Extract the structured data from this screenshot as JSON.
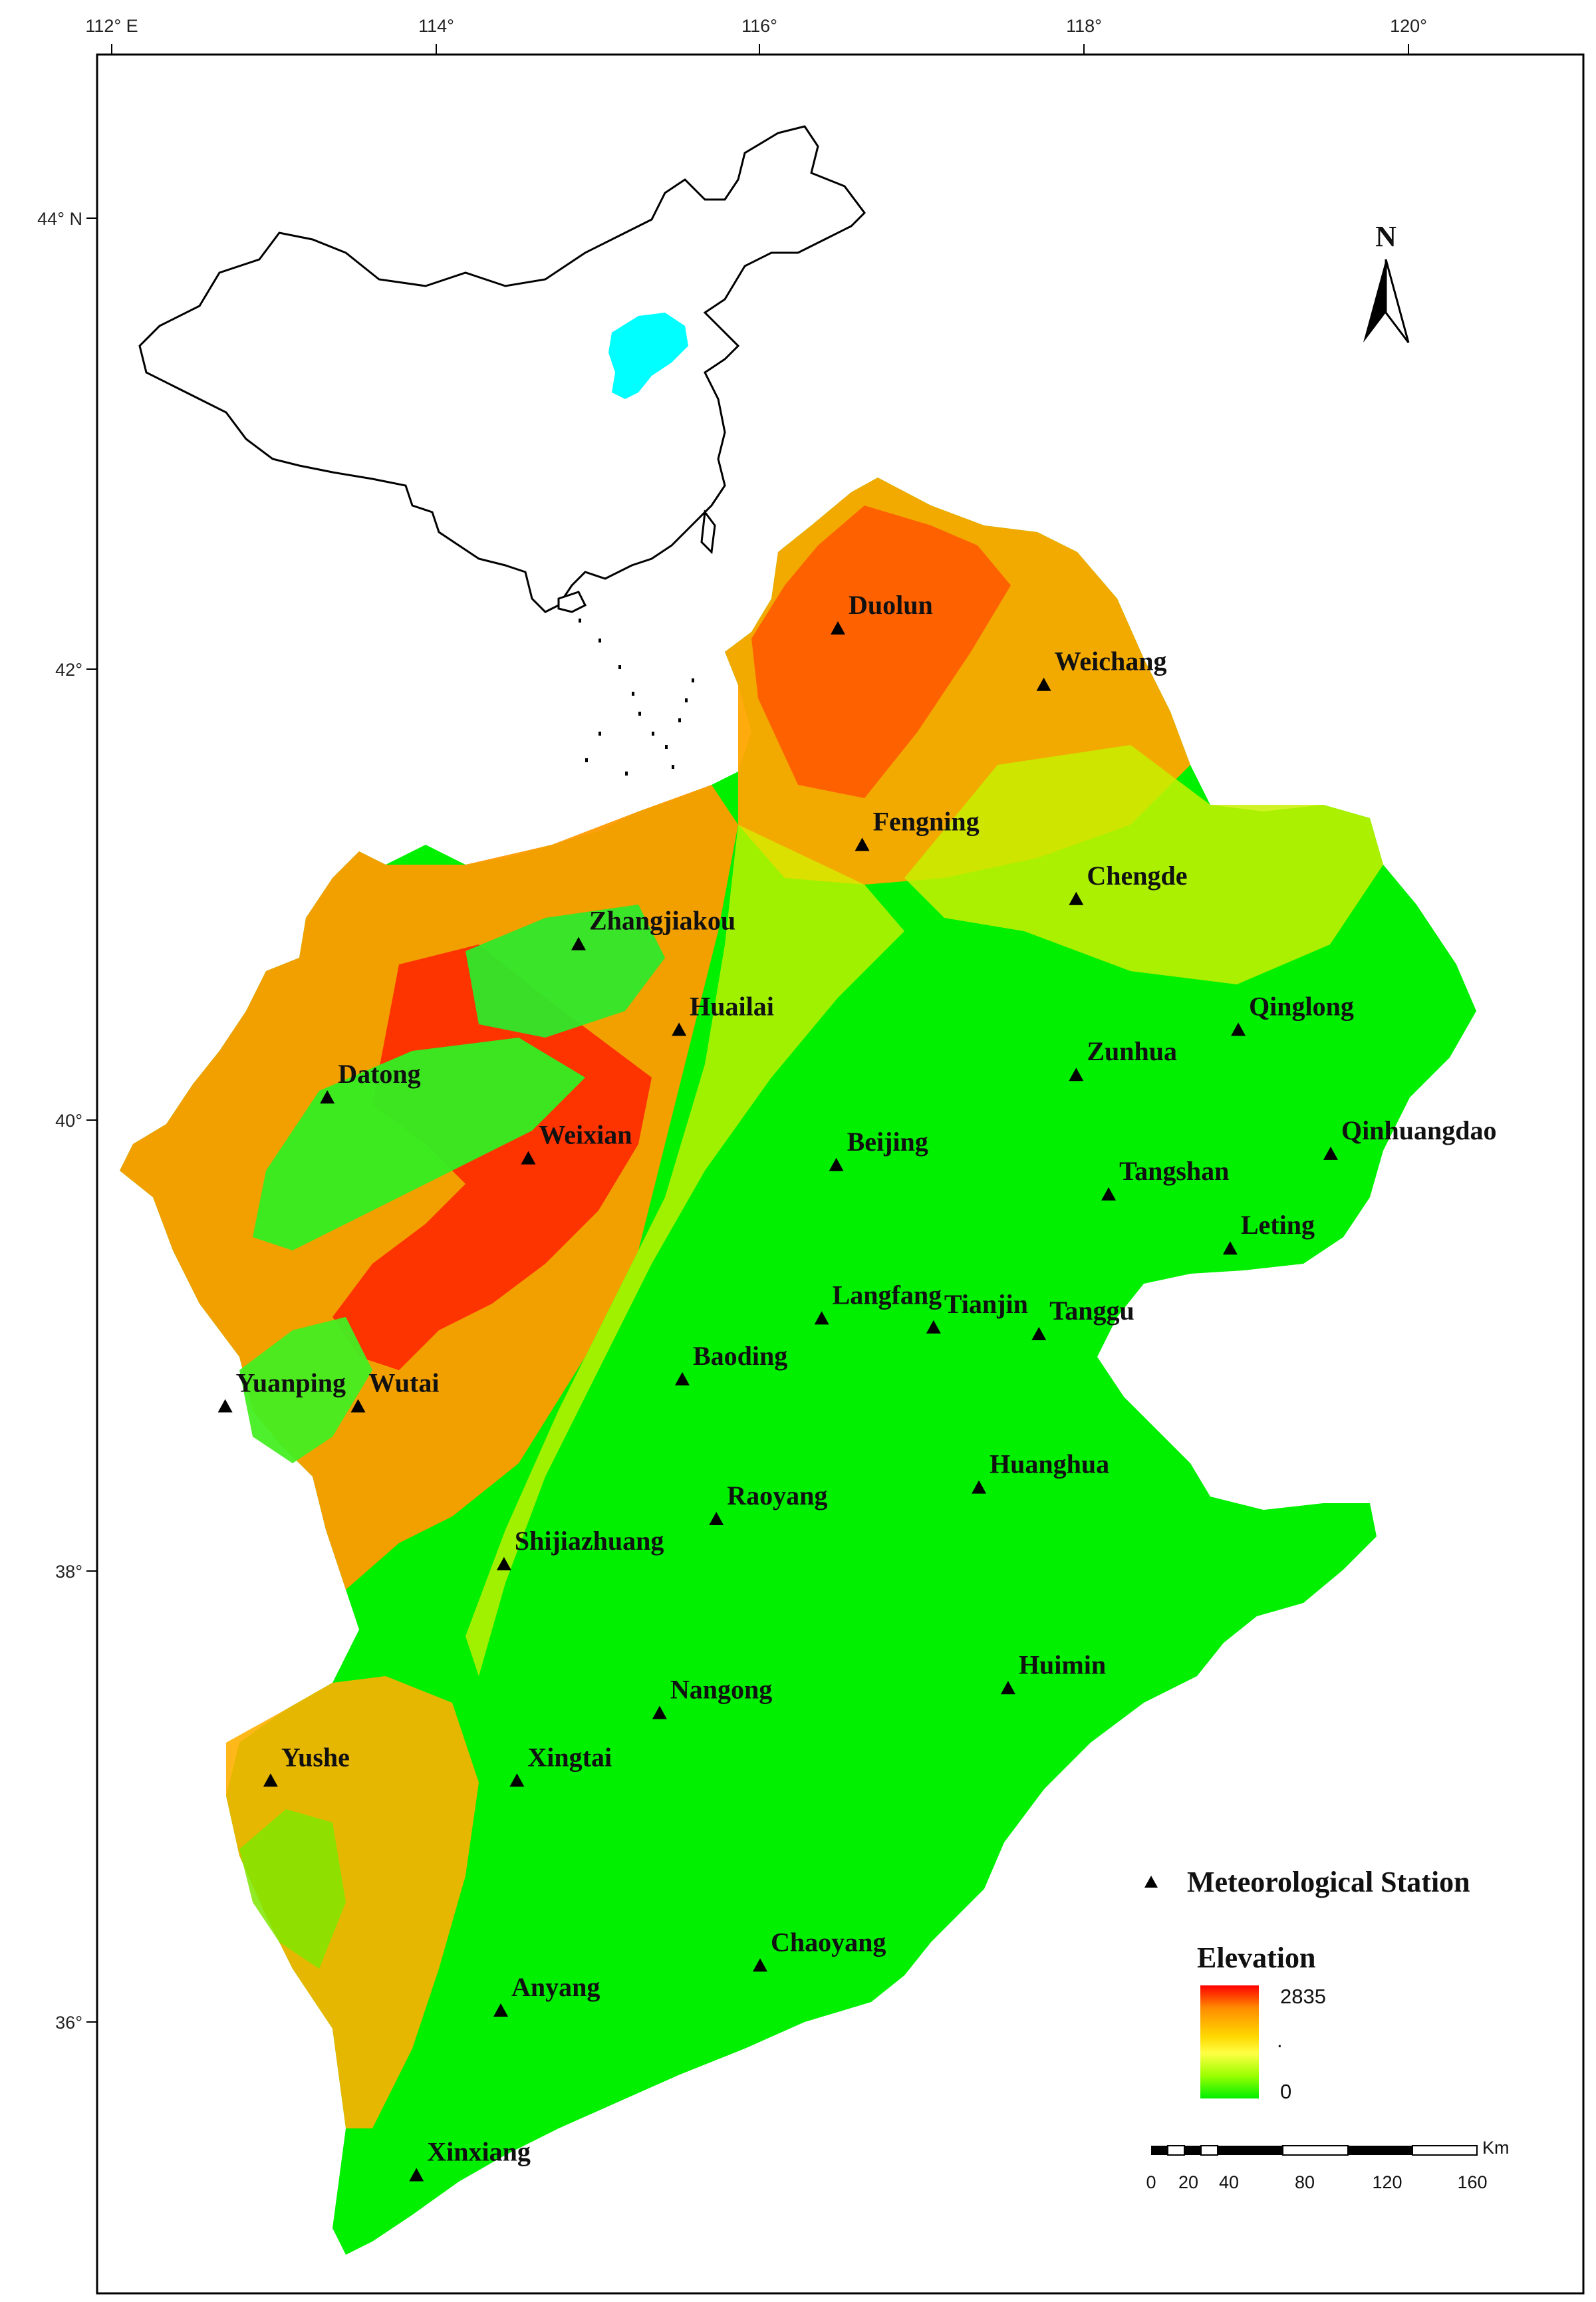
{
  "axes": {
    "longitude_labels": [
      "112° E",
      "114°",
      "116°",
      "118°",
      "120°"
    ],
    "latitude_labels": [
      "44° N",
      "42°",
      "40°",
      "38°",
      "36°"
    ]
  },
  "north_arrow": {
    "label": "N",
    "icon": "north-arrow-icon"
  },
  "inset": {
    "icon": "china-outline-icon",
    "highlight_color": "#00FFFF"
  },
  "stations": [
    {
      "name": "Duolun",
      "lon": 116.48,
      "lat": 42.18
    },
    {
      "name": "Weichang",
      "lon": 117.75,
      "lat": 41.93
    },
    {
      "name": "Fengning",
      "lon": 116.63,
      "lat": 41.22
    },
    {
      "name": "Chengde",
      "lon": 117.95,
      "lat": 40.98
    },
    {
      "name": "Zhangjiakou",
      "lon": 114.88,
      "lat": 40.78
    },
    {
      "name": "Qinglong",
      "lon": 118.95,
      "lat": 40.4
    },
    {
      "name": "Huailai",
      "lon": 115.5,
      "lat": 40.4
    },
    {
      "name": "Zunhua",
      "lon": 117.95,
      "lat": 40.2
    },
    {
      "name": "Qinhuangdao",
      "lon": 119.52,
      "lat": 39.85
    },
    {
      "name": "Datong",
      "lon": 113.33,
      "lat": 40.1
    },
    {
      "name": "Weixian",
      "lon": 114.57,
      "lat": 39.83
    },
    {
      "name": "Beijing",
      "lon": 116.47,
      "lat": 39.8
    },
    {
      "name": "Tangshan",
      "lon": 118.15,
      "lat": 39.67
    },
    {
      "name": "Leting",
      "lon": 118.9,
      "lat": 39.43
    },
    {
      "name": "Langfang",
      "lon": 116.38,
      "lat": 39.12
    },
    {
      "name": "Tianjin",
      "lon": 117.07,
      "lat": 39.08
    },
    {
      "name": "Tanggu",
      "lon": 117.72,
      "lat": 39.05
    },
    {
      "name": "Wutai",
      "lon": 113.52,
      "lat": 38.73
    },
    {
      "name": "Baoding",
      "lon": 115.52,
      "lat": 38.85
    },
    {
      "name": "Yuanping",
      "lon": 112.7,
      "lat": 38.73
    },
    {
      "name": "Huanghua",
      "lon": 117.35,
      "lat": 38.37
    },
    {
      "name": "Raoyang",
      "lon": 115.73,
      "lat": 38.23
    },
    {
      "name": "Shijiazhuang",
      "lon": 114.42,
      "lat": 38.03
    },
    {
      "name": "Huimin",
      "lon": 117.53,
      "lat": 37.48
    },
    {
      "name": "Nangong",
      "lon": 115.38,
      "lat": 37.37
    },
    {
      "name": "Xingtai",
      "lon": 114.5,
      "lat": 37.07
    },
    {
      "name": "Yushe",
      "lon": 112.98,
      "lat": 37.07
    },
    {
      "name": "Chaoyang",
      "lon": 116.0,
      "lat": 36.25
    },
    {
      "name": "Anyang",
      "lon": 114.4,
      "lat": 36.05
    },
    {
      "name": "Xinxiang",
      "lon": 113.88,
      "lat": 35.32
    }
  ],
  "legend": {
    "station_label": "Meteorological Station",
    "elevation_title": "Elevation",
    "elevation_max": "2835",
    "elevation_min": "0",
    "gradient_colors": [
      "#ff0000",
      "#ff8c00",
      "#ffd700",
      "#ffff44",
      "#9aff00",
      "#00f000"
    ]
  },
  "scale_bar": {
    "unit": "Km",
    "labels": [
      "0",
      "20",
      "40",
      "80",
      "120",
      "160"
    ]
  }
}
